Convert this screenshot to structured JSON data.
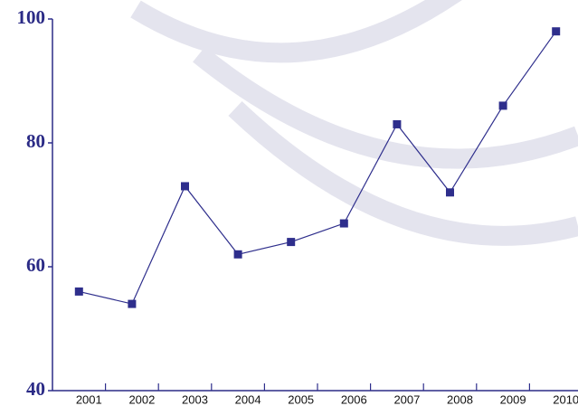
{
  "chart_data": {
    "type": "line",
    "categories": [
      "2001",
      "2002",
      "2003",
      "2004",
      "2005",
      "2006",
      "2007",
      "2008",
      "2009",
      "2010"
    ],
    "values": [
      56,
      54,
      73,
      62,
      64,
      67,
      83,
      72,
      86,
      98
    ],
    "color": "#2e2e8c",
    "ylim": [
      40,
      100
    ],
    "yticks": [
      40,
      60,
      80,
      100
    ],
    "grid": false
  }
}
